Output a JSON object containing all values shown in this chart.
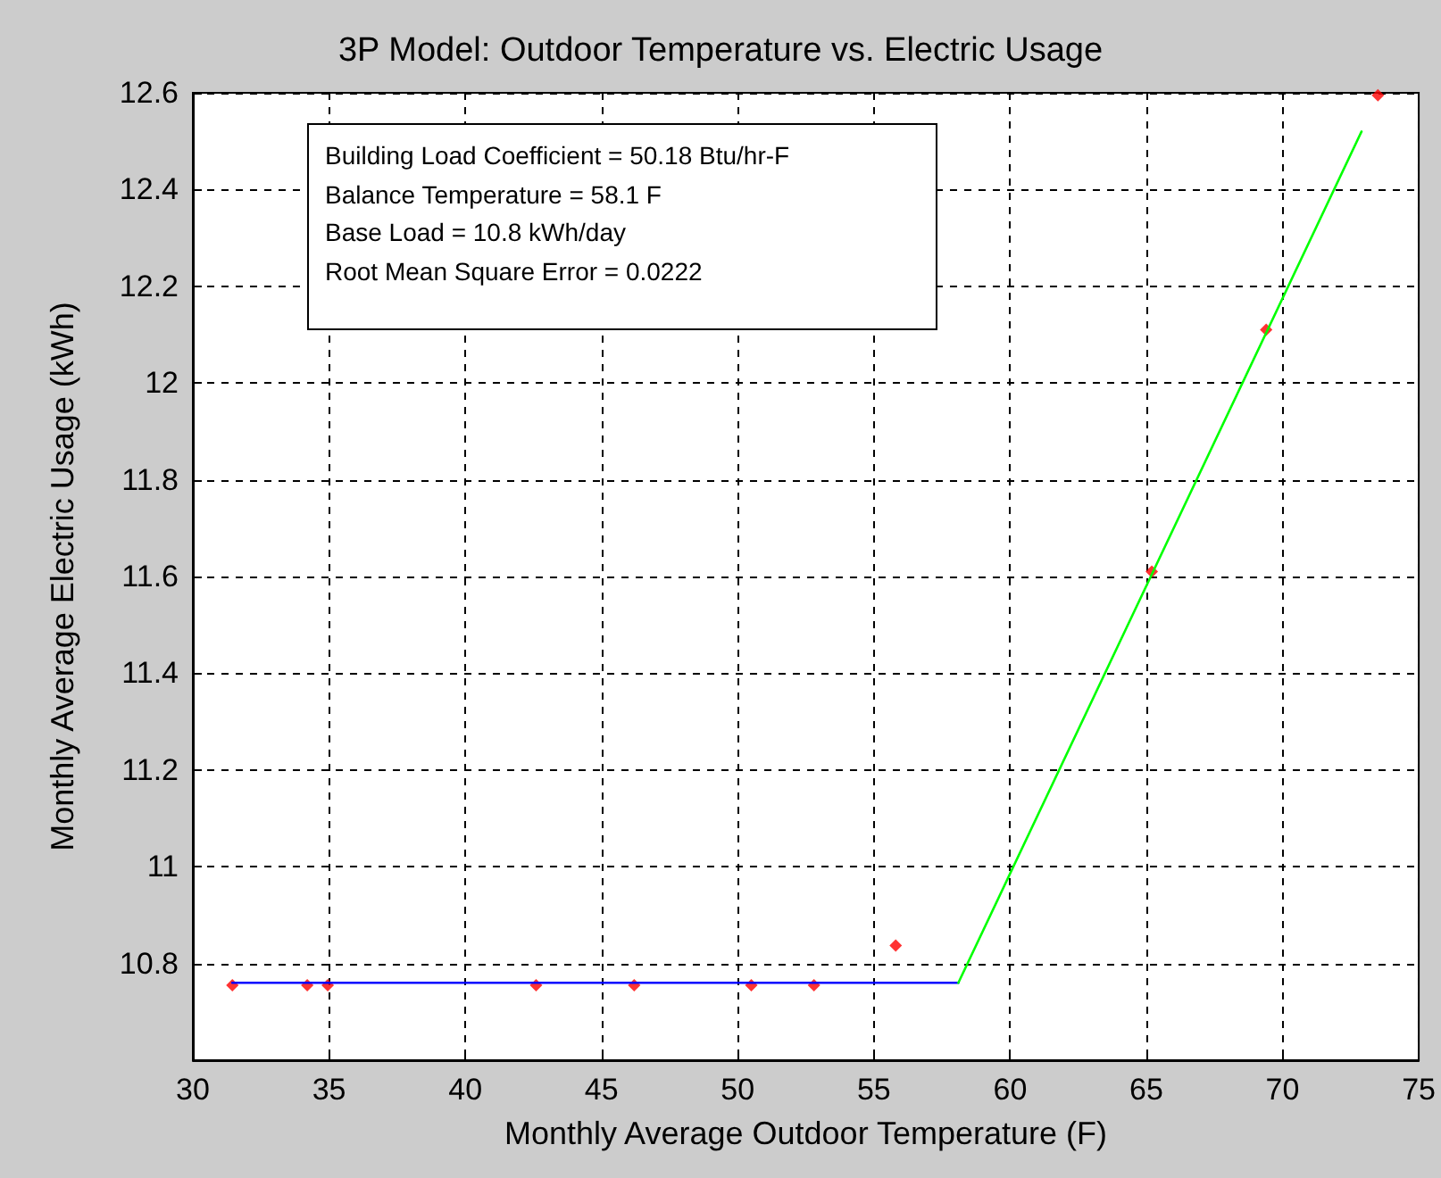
{
  "chart_data": {
    "type": "scatter",
    "title": "3P Model: Outdoor Temperature vs. Electric Usage",
    "xlabel": "Monthly Average Outdoor Temperature (F)",
    "ylabel": "Monthly Average Electric Usage (kWh)",
    "annotations": [
      "Building Load Coefficient = 50.18 Btu/hr-F",
      "Balance Temperature = 58.1 F",
      "Base Load = 10.8 kWh/day",
      "Root Mean Square Error = 0.0222"
    ],
    "series": [
      {
        "marker": "diamond",
        "color": "#ff0000",
        "x": [
          31.45,
          34.2,
          34.95,
          42.6,
          46.2,
          50.5,
          52.8,
          55.8,
          65.2,
          69.4,
          73.5
        ],
        "values": [
          10.755,
          10.755,
          10.755,
          10.755,
          10.755,
          10.755,
          10.755,
          10.837,
          11.61,
          12.11,
          12.595
        ]
      },
      {
        "type": "line",
        "marker": "none",
        "color": "#0000ff",
        "x": [
          31.45,
          58.1
        ],
        "values": [
          10.76,
          10.76
        ]
      },
      {
        "type": "line",
        "marker": "none",
        "color": "#00ff00",
        "x": [
          58.1,
          72.9
        ],
        "values": [
          10.76,
          12.52
        ]
      }
    ],
    "xlim": [
      30,
      75
    ],
    "xticks": [
      30,
      35,
      40,
      45,
      50,
      55,
      60,
      65,
      70,
      75
    ],
    "ylim": [
      10.6,
      12.6
    ],
    "yticks": [
      10.8,
      11,
      11.2,
      11.4,
      11.6,
      11.8,
      12,
      12.2,
      12.4,
      12.6
    ],
    "grid": true,
    "line_style": "solid"
  }
}
